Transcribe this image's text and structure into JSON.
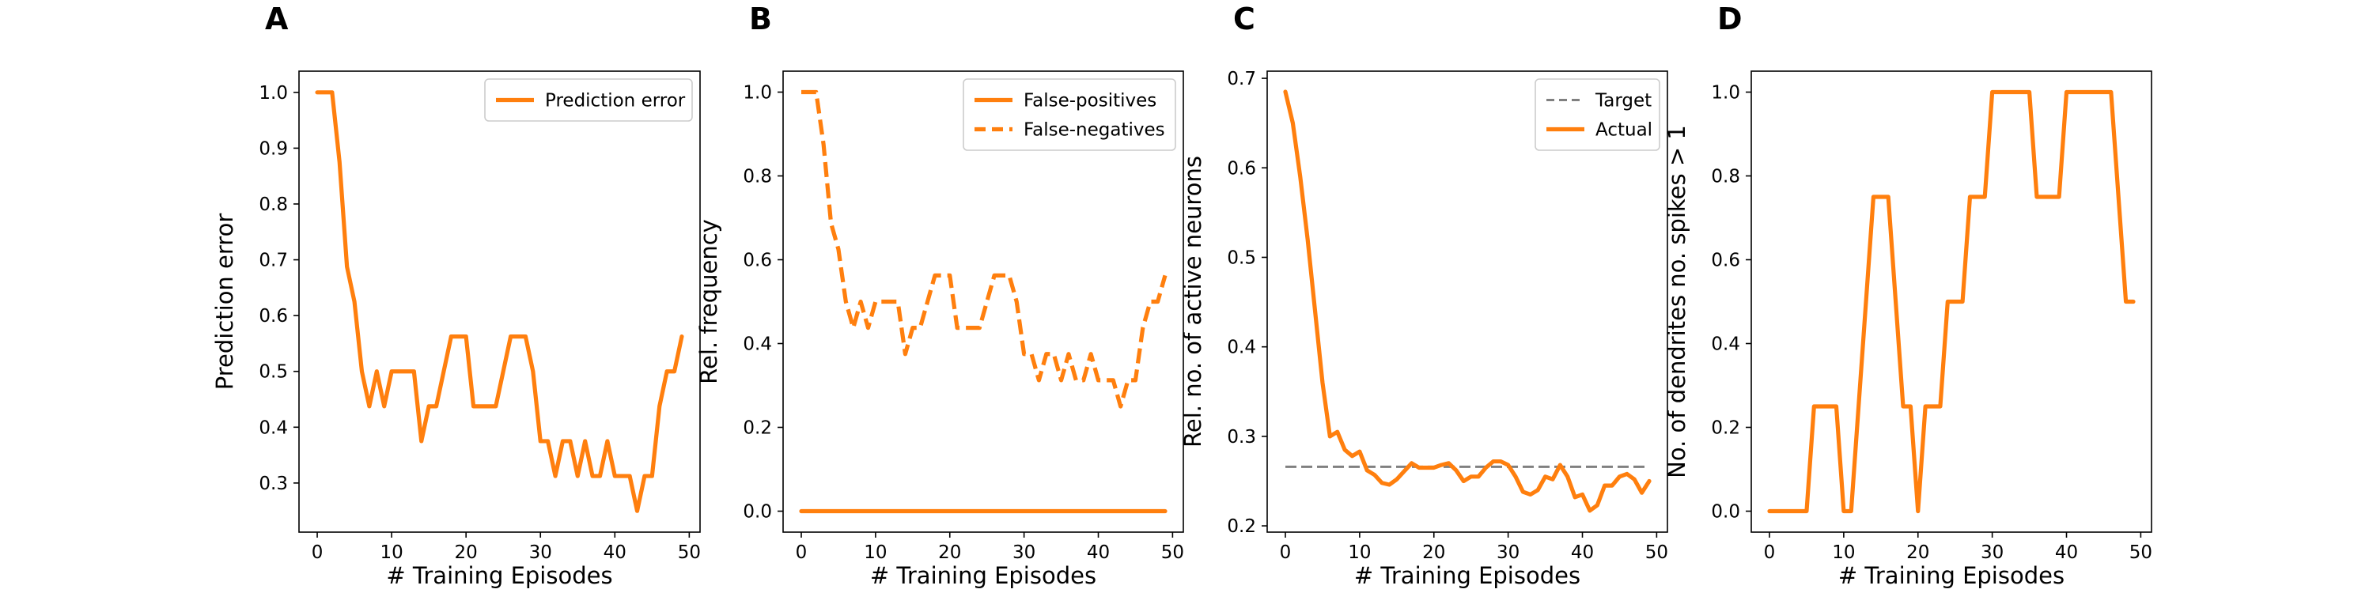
{
  "colors": {
    "orange": "#ff7f0e",
    "gray": "#808080",
    "axis": "#000000",
    "legend_border": "#cccccc"
  },
  "chart_data": [
    {
      "type": "line",
      "panel_label": "A",
      "xlabel": "# Training Episodes",
      "ylabel": "Prediction error",
      "xlim": [
        -2.45,
        51.45
      ],
      "ylim": [
        0.212,
        1.038
      ],
      "xticks": [
        0,
        10,
        20,
        30,
        40,
        50
      ],
      "xtick_labels": [
        "0",
        "10",
        "20",
        "30",
        "40",
        "50"
      ],
      "yticks": [
        0.3,
        0.4,
        0.5,
        0.6,
        0.7,
        0.8,
        0.9,
        1.0
      ],
      "ytick_labels": [
        "0.3",
        "0.4",
        "0.5",
        "0.6",
        "0.7",
        "0.8",
        "0.9",
        "1.0"
      ],
      "legend_position": "upper-right",
      "series": [
        {
          "name": "Prediction error",
          "style": "solid",
          "color": "#ff7f0e",
          "x": [
            0,
            1,
            2,
            3,
            4,
            5,
            6,
            7,
            8,
            9,
            10,
            11,
            12,
            13,
            14,
            15,
            16,
            17,
            18,
            19,
            20,
            21,
            22,
            23,
            24,
            25,
            26,
            27,
            28,
            29,
            30,
            31,
            32,
            33,
            34,
            35,
            36,
            37,
            38,
            39,
            40,
            41,
            42,
            43,
            44,
            45,
            46,
            47,
            48,
            49
          ],
          "y": [
            1.0,
            1.0,
            1.0,
            0.875,
            0.6875,
            0.625,
            0.5,
            0.4375,
            0.5,
            0.4375,
            0.5,
            0.5,
            0.5,
            0.5,
            0.375,
            0.4375,
            0.4375,
            0.5,
            0.5625,
            0.5625,
            0.5625,
            0.4375,
            0.4375,
            0.4375,
            0.4375,
            0.5,
            0.5625,
            0.5625,
            0.5625,
            0.5,
            0.375,
            0.375,
            0.3125,
            0.375,
            0.375,
            0.3125,
            0.375,
            0.3125,
            0.3125,
            0.375,
            0.3125,
            0.3125,
            0.3125,
            0.25,
            0.3125,
            0.3125,
            0.4375,
            0.5,
            0.5,
            0.5625
          ]
        }
      ]
    },
    {
      "type": "line",
      "panel_label": "B",
      "xlabel": "# Training Episodes",
      "ylabel": "Rel. frequency",
      "xlim": [
        -2.45,
        51.45
      ],
      "ylim": [
        -0.05,
        1.05
      ],
      "xticks": [
        0,
        10,
        20,
        30,
        40,
        50
      ],
      "xtick_labels": [
        "0",
        "10",
        "20",
        "30",
        "40",
        "50"
      ],
      "yticks": [
        0.0,
        0.2,
        0.4,
        0.6,
        0.8,
        1.0
      ],
      "ytick_labels": [
        "0.0",
        "0.2",
        "0.4",
        "0.6",
        "0.8",
        "1.0"
      ],
      "legend_position": "upper-right",
      "series": [
        {
          "name": "False-positives",
          "style": "solid",
          "color": "#ff7f0e",
          "x": [
            0,
            49
          ],
          "y": [
            0.0,
            0.0
          ]
        },
        {
          "name": "False-negatives",
          "style": "dashed",
          "color": "#ff7f0e",
          "x": [
            0,
            1,
            2,
            3,
            4,
            5,
            6,
            7,
            8,
            9,
            10,
            11,
            12,
            13,
            14,
            15,
            16,
            17,
            18,
            19,
            20,
            21,
            22,
            23,
            24,
            25,
            26,
            27,
            28,
            29,
            30,
            31,
            32,
            33,
            34,
            35,
            36,
            37,
            38,
            39,
            40,
            41,
            42,
            43,
            44,
            45,
            46,
            47,
            48,
            49
          ],
          "y": [
            1.0,
            1.0,
            1.0,
            0.875,
            0.6875,
            0.625,
            0.5,
            0.4375,
            0.5,
            0.4375,
            0.5,
            0.5,
            0.5,
            0.5,
            0.375,
            0.4375,
            0.4375,
            0.5,
            0.5625,
            0.5625,
            0.5625,
            0.4375,
            0.4375,
            0.4375,
            0.4375,
            0.5,
            0.5625,
            0.5625,
            0.5625,
            0.5,
            0.375,
            0.375,
            0.3125,
            0.375,
            0.375,
            0.3125,
            0.375,
            0.3125,
            0.3125,
            0.375,
            0.3125,
            0.3125,
            0.3125,
            0.25,
            0.3125,
            0.3125,
            0.4375,
            0.5,
            0.5,
            0.5625
          ]
        }
      ]
    },
    {
      "type": "line",
      "panel_label": "C",
      "xlabel": "# Training Episodes",
      "ylabel": "Rel. no. of active neurons",
      "xlim": [
        -2.45,
        51.45
      ],
      "ylim": [
        0.193,
        0.708
      ],
      "xticks": [
        0,
        10,
        20,
        30,
        40,
        50
      ],
      "xtick_labels": [
        "0",
        "10",
        "20",
        "30",
        "40",
        "50"
      ],
      "yticks": [
        0.2,
        0.3,
        0.4,
        0.5,
        0.6,
        0.7
      ],
      "ytick_labels": [
        "0.2",
        "0.3",
        "0.4",
        "0.5",
        "0.6",
        "0.7"
      ],
      "legend_position": "upper-right",
      "series": [
        {
          "name": "Target",
          "style": "dashed-gray",
          "color": "#808080",
          "x": [
            0,
            49
          ],
          "y": [
            0.266,
            0.266
          ]
        },
        {
          "name": "Actual",
          "style": "solid",
          "color": "#ff7f0e",
          "x": [
            0,
            1,
            2,
            3,
            4,
            5,
            6,
            7,
            8,
            9,
            10,
            11,
            12,
            13,
            14,
            15,
            16,
            17,
            18,
            19,
            20,
            21,
            22,
            23,
            24,
            25,
            26,
            27,
            28,
            29,
            30,
            31,
            32,
            33,
            34,
            35,
            36,
            37,
            38,
            39,
            40,
            41,
            42,
            43,
            44,
            45,
            46,
            47,
            48,
            49
          ],
          "y": [
            0.685,
            0.65,
            0.59,
            0.52,
            0.44,
            0.36,
            0.3,
            0.305,
            0.285,
            0.278,
            0.283,
            0.262,
            0.257,
            0.248,
            0.246,
            0.252,
            0.261,
            0.27,
            0.265,
            0.265,
            0.265,
            0.268,
            0.27,
            0.262,
            0.25,
            0.255,
            0.255,
            0.265,
            0.272,
            0.272,
            0.268,
            0.255,
            0.238,
            0.235,
            0.24,
            0.255,
            0.252,
            0.268,
            0.255,
            0.232,
            0.235,
            0.217,
            0.223,
            0.245,
            0.245,
            0.255,
            0.258,
            0.252,
            0.237,
            0.25
          ]
        }
      ]
    },
    {
      "type": "line",
      "panel_label": "D",
      "xlabel": "# Training Episodes",
      "ylabel": "No. of dendrites no. spikes > 1",
      "xlim": [
        -2.45,
        51.45
      ],
      "ylim": [
        -0.05,
        1.05
      ],
      "xticks": [
        0,
        10,
        20,
        30,
        40,
        50
      ],
      "xtick_labels": [
        "0",
        "10",
        "20",
        "30",
        "40",
        "50"
      ],
      "yticks": [
        0.0,
        0.2,
        0.4,
        0.6,
        0.8,
        1.0
      ],
      "ytick_labels": [
        "0.0",
        "0.2",
        "0.4",
        "0.6",
        "0.8",
        "1.0"
      ],
      "legend_position": "none",
      "series": [
        {
          "name": "",
          "style": "solid",
          "color": "#ff7f0e",
          "x": [
            0,
            1,
            2,
            3,
            4,
            5,
            6,
            7,
            8,
            9,
            10,
            11,
            12,
            13,
            14,
            15,
            16,
            17,
            18,
            19,
            20,
            21,
            22,
            23,
            24,
            25,
            26,
            27,
            28,
            29,
            30,
            31,
            32,
            33,
            34,
            35,
            36,
            37,
            38,
            39,
            40,
            41,
            42,
            43,
            44,
            45,
            46,
            47,
            48,
            49
          ],
          "y": [
            0,
            0,
            0,
            0,
            0,
            0,
            0.25,
            0.25,
            0.25,
            0.25,
            0,
            0,
            0.25,
            0.5,
            0.75,
            0.75,
            0.75,
            0.5,
            0.25,
            0.25,
            0,
            0.25,
            0.25,
            0.25,
            0.5,
            0.5,
            0.5,
            0.75,
            0.75,
            0.75,
            1,
            1,
            1,
            1,
            1,
            1,
            0.75,
            0.75,
            0.75,
            0.75,
            1,
            1,
            1,
            1,
            1,
            1,
            1,
            0.75,
            0.5,
            0.5
          ]
        }
      ]
    }
  ]
}
